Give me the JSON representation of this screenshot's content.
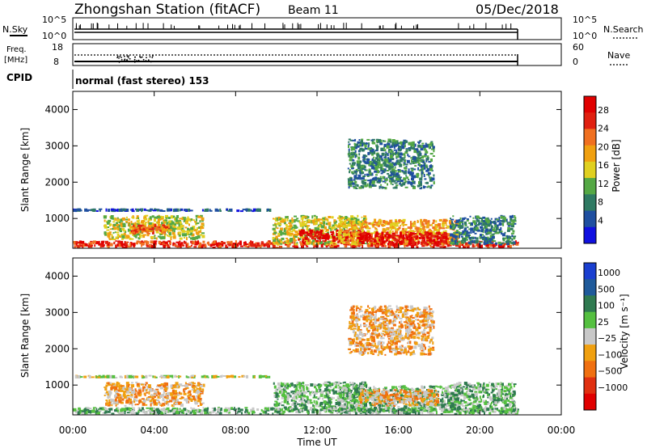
{
  "header": {
    "station": "Zhongshan Station (fitACF)",
    "beam": "Beam 11",
    "date": "05/Dec/2018"
  },
  "top_panels": {
    "nsky_label": "N.Sky",
    "nsky_ticks": [
      "10^5",
      "10^0"
    ],
    "nsearch_label": "N.Search",
    "nsearch_ticks": [
      "10^5",
      "10^0"
    ],
    "freq_label_1": "Freq.",
    "freq_label_2": "[MHz]",
    "freq_ticks": [
      "18",
      "8"
    ],
    "nave_label": "Nave",
    "nave_ticks": [
      "60",
      "0"
    ],
    "cpid_label": "CPID",
    "cpid_value": "normal (fast stereo) 153"
  },
  "chart_data": [
    {
      "type": "heatmap",
      "name": "power",
      "ylabel": "Slant Range [km]",
      "ylim": [
        180,
        4500
      ],
      "yticks": [
        "1000",
        "2000",
        "3000",
        "4000"
      ],
      "xlabel": "Time UT",
      "xlim": [
        0,
        24
      ],
      "colorbar_label": "Power [dB]",
      "colorbar_ticks": [
        "4",
        "8",
        "12",
        "16",
        "20",
        "24",
        "28"
      ],
      "colors": [
        "#1010e0",
        "#1f4fa0",
        "#2f7a63",
        "#55a845",
        "#e0d020",
        "#f0a010",
        "#f07020",
        "#e02010",
        "#e00000"
      ],
      "scatter_regions": [
        {
          "t": [
            0.0,
            22.0
          ],
          "r": [
            180,
            400
          ],
          "level": 7
        },
        {
          "t": [
            0.0,
            9.8
          ],
          "r": [
            1180,
            1280
          ],
          "level": 1
        },
        {
          "t": [
            1.5,
            6.5
          ],
          "r": [
            400,
            1100
          ],
          "level": 4
        },
        {
          "t": [
            2.8,
            4.8
          ],
          "r": [
            550,
            850
          ],
          "level": 6
        },
        {
          "t": [
            9.8,
            14.5
          ],
          "r": [
            250,
            1100
          ],
          "level": 4
        },
        {
          "t": [
            11.0,
            14.5
          ],
          "r": [
            350,
            700
          ],
          "level": 8
        },
        {
          "t": [
            13.0,
            19.0
          ],
          "r": [
            250,
            1000
          ],
          "level": 5
        },
        {
          "t": [
            14.0,
            18.5
          ],
          "r": [
            250,
            650
          ],
          "level": 8
        },
        {
          "t": [
            13.5,
            17.8
          ],
          "r": [
            1800,
            3200
          ],
          "level": 2
        },
        {
          "t": [
            18.5,
            21.8
          ],
          "r": [
            250,
            1100
          ],
          "level": 2
        }
      ]
    },
    {
      "type": "heatmap",
      "name": "velocity",
      "ylabel": "Slant Range [km]",
      "ylim": [
        180,
        4500
      ],
      "yticks": [
        "1000",
        "2000",
        "3000",
        "4000"
      ],
      "xlabel": "Time UT",
      "xlim": [
        0,
        24
      ],
      "xticks": [
        "00:00",
        "04:00",
        "08:00",
        "12:00",
        "16:00",
        "20:00",
        "00:00"
      ],
      "colorbar_label": "Velocity [m s⁻¹]",
      "colorbar_ticks": [
        "1000",
        "500",
        "100",
        "25",
        "−25",
        "−100",
        "−500",
        "−1000"
      ],
      "colors": [
        "#1a3fd0",
        "#1f5a9a",
        "#2f7a50",
        "#55c040",
        "#c8c8c8",
        "#f0a010",
        "#f07010",
        "#e03010",
        "#e00000"
      ],
      "scatter_regions": [
        {
          "t": [
            0.0,
            22.0
          ],
          "r": [
            180,
            400
          ],
          "level": 3
        },
        {
          "t": [
            0.0,
            9.8
          ],
          "r": [
            1180,
            1280
          ],
          "level": 4
        },
        {
          "t": [
            1.5,
            6.5
          ],
          "r": [
            400,
            1100
          ],
          "level": 5
        },
        {
          "t": [
            9.8,
            14.5
          ],
          "r": [
            250,
            1100
          ],
          "level": 3
        },
        {
          "t": [
            13.0,
            19.0
          ],
          "r": [
            250,
            1000
          ],
          "level": 3
        },
        {
          "t": [
            14.0,
            18.0
          ],
          "r": [
            400,
            900
          ],
          "level": 5
        },
        {
          "t": [
            13.5,
            17.8
          ],
          "r": [
            1800,
            3200
          ],
          "level": 5
        },
        {
          "t": [
            18.5,
            21.8
          ],
          "r": [
            250,
            1100
          ],
          "level": 3
        }
      ]
    }
  ]
}
